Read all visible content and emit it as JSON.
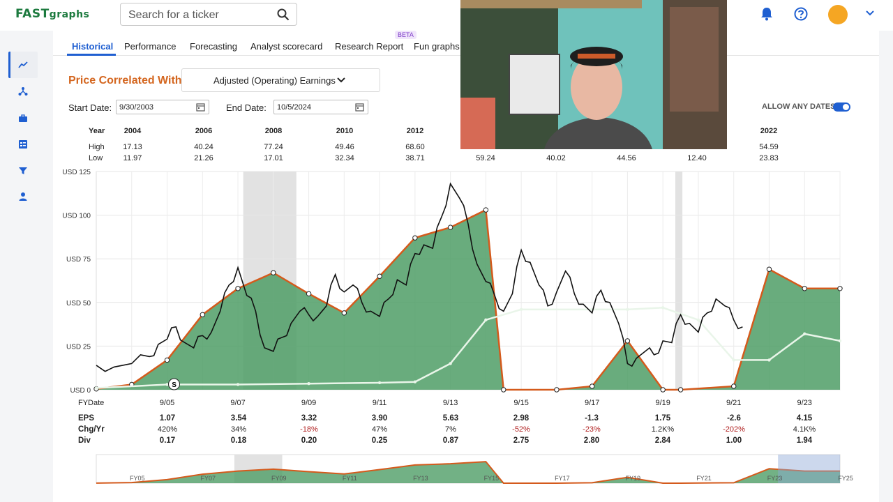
{
  "app": {
    "logo_main": "FAST",
    "logo_sub": "graphs"
  },
  "search": {
    "placeholder": "Search for a ticker"
  },
  "tabs": [
    {
      "label": "Historical"
    },
    {
      "label": "Performance"
    },
    {
      "label": "Forecasting"
    },
    {
      "label": "Analyst scorecard"
    },
    {
      "label": "Research Report"
    },
    {
      "label": "Fun graphs"
    }
  ],
  "beta_label": "BETA",
  "price_correlated": {
    "label": "Price Correlated With",
    "selected": "Adjusted (Operating) Earnings"
  },
  "dates": {
    "start_label": "Start Date:",
    "start_value": "9/30/2003",
    "end_label": "End Date:",
    "end_value": "10/5/2024"
  },
  "allow_any_dates": "ALLOW ANY DATES",
  "high_low": {
    "year_label": "Year",
    "high_label": "High",
    "low_label": "Low",
    "columns": [
      {
        "year": "2004",
        "high": "17.13",
        "low": "11.97"
      },
      {
        "year": "2006",
        "high": "40.24",
        "low": "21.26"
      },
      {
        "year": "2008",
        "high": "77.24",
        "low": "17.01"
      },
      {
        "year": "2010",
        "high": "49.46",
        "low": "32.34"
      },
      {
        "year": "2012",
        "high": "68.60",
        "low": "38.71"
      },
      {
        "year": "",
        "high": "",
        "low": "59.24"
      },
      {
        "year": "",
        "high": "",
        "low": "40.02"
      },
      {
        "year": "",
        "high": "",
        "low": "44.56"
      },
      {
        "year": "",
        "high": "",
        "low": "12.40"
      },
      {
        "year": "2022",
        "high": "54.59",
        "low": "23.83"
      }
    ]
  },
  "chart_data": {
    "type": "area",
    "ylabel_ticks": [
      "USD 0",
      "USD 25",
      "USD 50",
      "USD 75",
      "USD 100",
      "USD 125"
    ],
    "ylim": [
      0,
      125
    ],
    "x_ticks": [
      "9/05",
      "9/07",
      "9/09",
      "9/11",
      "9/13",
      "9/15",
      "9/17",
      "9/19",
      "9/21",
      "9/23"
    ],
    "x_label": "FYDate",
    "series": [
      {
        "name": "earnings_justified",
        "x": [
          2003.75,
          2004.75,
          2005.75,
          2006.75,
          2007.75,
          2008.75,
          2009.75,
          2010.75,
          2011.75,
          2012.75,
          2013.75,
          2014.75,
          2015.25,
          2016.75,
          2017.75,
          2018.75,
          2019.75,
          2020.25,
          2021.75,
          2022.75,
          2023.75,
          2024.75
        ],
        "values": [
          0.5,
          3,
          17,
          43,
          58,
          67,
          55,
          44,
          65,
          87,
          93,
          103,
          0,
          0,
          2,
          28,
          0,
          0,
          2,
          69,
          58,
          58
        ]
      },
      {
        "name": "dividends",
        "x": [
          2003.75,
          2005.75,
          2007.75,
          2009.75,
          2011.75,
          2012.75,
          2013.75,
          2014.75,
          2015.75,
          2017.75,
          2018.75,
          2019.75,
          2020.75,
          2021.75,
          2022.75,
          2023.75,
          2024.75
        ],
        "values": [
          1,
          3,
          3,
          3.5,
          4,
          4.5,
          15,
          40,
          46,
          46,
          46,
          47,
          40,
          17,
          17,
          32,
          28
        ]
      }
    ],
    "price_points": [
      [
        2003.75,
        14
      ],
      [
        2004.25,
        13
      ],
      [
        2004.75,
        15
      ],
      [
        2005.25,
        19
      ],
      [
        2005.5,
        26
      ],
      [
        2005.75,
        29
      ],
      [
        2006.0,
        36
      ],
      [
        2006.25,
        27
      ],
      [
        2006.5,
        24
      ],
      [
        2006.75,
        31
      ],
      [
        2007.0,
        33
      ],
      [
        2007.25,
        45
      ],
      [
        2007.5,
        60
      ],
      [
        2007.75,
        70
      ],
      [
        2008.0,
        54
      ],
      [
        2008.25,
        45
      ],
      [
        2008.5,
        24
      ],
      [
        2008.75,
        22
      ],
      [
        2009.0,
        30
      ],
      [
        2009.25,
        38
      ],
      [
        2009.5,
        45
      ],
      [
        2009.75,
        43
      ],
      [
        2010.0,
        42
      ],
      [
        2010.25,
        48
      ],
      [
        2010.5,
        66
      ],
      [
        2010.75,
        56
      ],
      [
        2011.0,
        60
      ],
      [
        2011.25,
        50
      ],
      [
        2011.5,
        45
      ],
      [
        2011.75,
        42
      ],
      [
        2012.0,
        52
      ],
      [
        2012.25,
        63
      ],
      [
        2012.5,
        60
      ],
      [
        2012.75,
        78
      ],
      [
        2013.0,
        83
      ],
      [
        2013.25,
        81
      ],
      [
        2013.5,
        99
      ],
      [
        2013.75,
        118
      ],
      [
        2014.0,
        110
      ],
      [
        2014.25,
        95
      ],
      [
        2014.5,
        72
      ],
      [
        2014.75,
        62
      ],
      [
        2015.0,
        54
      ],
      [
        2015.25,
        45
      ],
      [
        2015.5,
        55
      ],
      [
        2015.75,
        80
      ],
      [
        2016.0,
        73
      ],
      [
        2016.25,
        60
      ],
      [
        2016.5,
        48
      ],
      [
        2016.75,
        56
      ],
      [
        2017.0,
        68
      ],
      [
        2017.25,
        55
      ],
      [
        2017.5,
        49
      ],
      [
        2017.75,
        44
      ],
      [
        2018.0,
        57
      ],
      [
        2018.25,
        50
      ],
      [
        2018.5,
        38
      ],
      [
        2018.75,
        15
      ],
      [
        2019.0,
        18
      ],
      [
        2019.25,
        22
      ],
      [
        2019.5,
        20
      ],
      [
        2019.75,
        28
      ],
      [
        2020.0,
        27
      ],
      [
        2020.25,
        43
      ],
      [
        2020.5,
        38
      ],
      [
        2020.75,
        33
      ],
      [
        2021.0,
        44
      ],
      [
        2021.25,
        52
      ],
      [
        2021.5,
        48
      ],
      [
        2021.75,
        40
      ],
      [
        2022.0,
        36
      ]
    ],
    "recessions": [
      [
        2007.9,
        2009.4
      ],
      [
        2020.1,
        2020.3
      ]
    ]
  },
  "fy_table": {
    "eps_label": "EPS",
    "chg_label": "Chg/Yr",
    "div_label": "Div",
    "eps": [
      "1.07",
      "3.54",
      "3.32",
      "3.90",
      "5.63",
      "2.98",
      "-1.3",
      "1.75",
      "-2.6",
      "4.15"
    ],
    "chg": [
      "420%",
      "34%",
      "-18%",
      "47%",
      "7%",
      "-52%",
      "-23%",
      "1.2K%",
      "-202%",
      "4.1K%"
    ],
    "div": [
      "0.17",
      "0.18",
      "0.20",
      "0.25",
      "0.87",
      "2.75",
      "2.80",
      "2.84",
      "1.00",
      "1.94"
    ]
  },
  "navigator": {
    "labels": [
      "FY05",
      "FY07",
      "FY09",
      "FY11",
      "FY13",
      "FY15",
      "FY17",
      "FY19",
      "FY21",
      "FY23",
      "FY25"
    ]
  },
  "s_marker": "S",
  "colors": {
    "accent": "#1f5fd1",
    "area_fill": "#4f9e66",
    "area_line": "#d45a1c",
    "brand_orange": "#d4661f"
  }
}
